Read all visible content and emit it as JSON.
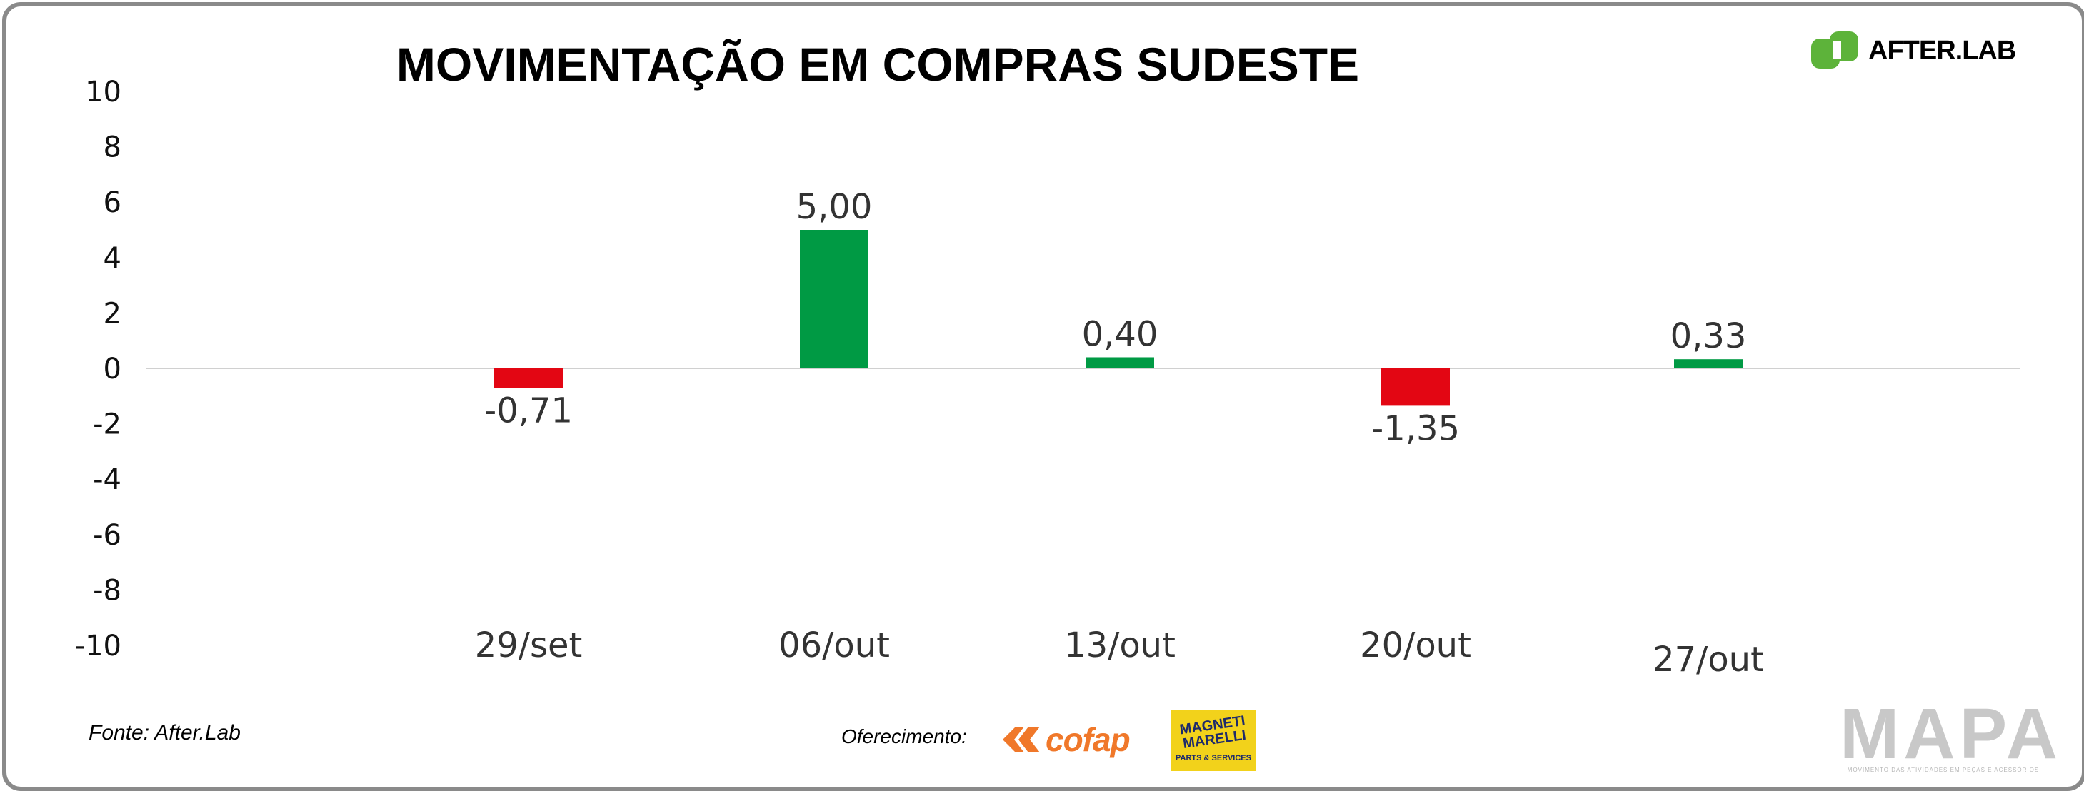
{
  "title": "MOVIMENTAÇÃO EM COMPRAS SUDESTE",
  "source_text": "Fonte: After.Lab",
  "sponsor_label": "Oferecimento:",
  "logos": {
    "afterlab": "AFTER.LAB",
    "cofap": "cofap",
    "magneti_marelli": "MAGNETI MARELLI",
    "magneti_marelli_sub": "PARTS & SERVICES",
    "mapa": "MAPA",
    "mapa_sub": "MOVIMENTO DAS ATIVIDADES EM PEÇAS E ACESSÓRIOS"
  },
  "colors": {
    "positive": "#009a44",
    "negative": "#e30613",
    "zero_line": "#d0d0d0",
    "frame": "#8a8a8a",
    "afterlab_green": "#5db33a",
    "cofap_orange": "#f0782a",
    "mm_yellow": "#f2d21b",
    "mm_blue": "#1d2a6b"
  },
  "chart_data": {
    "type": "bar",
    "title": "MOVIMENTAÇÃO EM COMPRAS SUDESTE",
    "xlabel": "",
    "ylabel": "",
    "ylim": [
      -10,
      10
    ],
    "yticks": [
      "10",
      "8",
      "6",
      "4",
      "2",
      "0",
      "-2",
      "-4",
      "-6",
      "-8",
      "-10"
    ],
    "categories": [
      "29/set",
      "06/out",
      "13/out",
      "20/out",
      "27/out"
    ],
    "values": [
      -0.71,
      5.0,
      0.4,
      -1.35,
      0.33
    ],
    "data_labels": [
      "-0,71",
      "5,00",
      "0,40",
      "-1,35",
      "0,33"
    ],
    "grid": false,
    "legend": "none"
  }
}
